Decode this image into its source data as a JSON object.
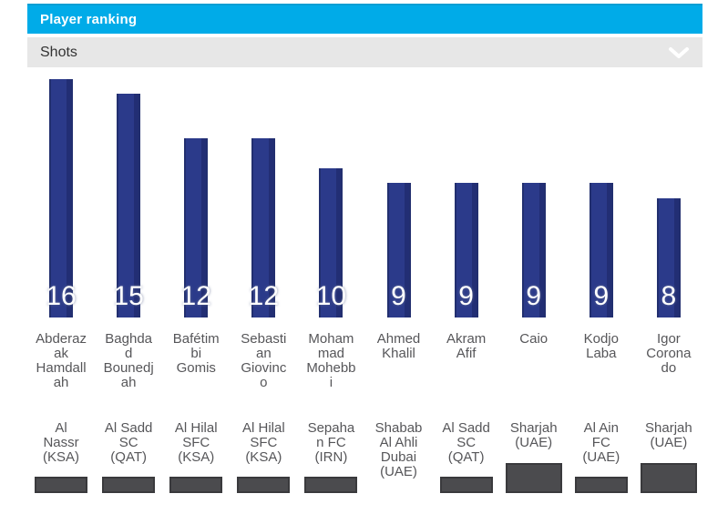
{
  "panel": {
    "title": "Player ranking"
  },
  "dropdown": {
    "selected": "Shots",
    "icon": "chevron-down-icon"
  },
  "colors": {
    "header_bg": "#00abe8",
    "header_text": "#ffffff",
    "dropdown_bg": "#e7e7e7",
    "bar": "#2b3a8a",
    "bar_edge": "#222f6f",
    "value_text": "#ffffff",
    "label_text": "#565659",
    "logo_placeholder": "#4b4b4e"
  },
  "chart_data": {
    "type": "bar",
    "title": "Player ranking",
    "metric": "Shots",
    "xlabel": "",
    "ylabel": "Shots",
    "ylim": [
      0,
      16
    ],
    "grid": false,
    "legend": "none",
    "bar_color": "#2b3a8a",
    "categories": [
      "Abderazak Hamdallah",
      "Baghdad Bounedjah",
      "Bafétimbi Gomis",
      "Sebastian Giovinco",
      "Mohammad Mohebbi",
      "Ahmed Khalil",
      "Akram Afif",
      "Caio",
      "Kodjo Laba",
      "Igor Coronado"
    ],
    "values": [
      16,
      15,
      12,
      12,
      10,
      9,
      9,
      9,
      9,
      8
    ],
    "teams": [
      "Al Nassr (KSA)",
      "Al Sadd SC (QAT)",
      "Al Hilal SFC (KSA)",
      "Al Hilal SFC (KSA)",
      "Sepahan FC (IRN)",
      "Shabab Al Ahli Dubai (UAE)",
      "Al Sadd SC (QAT)",
      "Sharjah (UAE)",
      "Al Ain FC (UAE)",
      "Sharjah (UAE)"
    ],
    "players": [
      {
        "value": 16,
        "name_lines": [
          "Abderaz",
          "ak",
          "Hamdall",
          "ah"
        ],
        "team_lines": [
          "Al",
          "Nassr",
          "(KSA)"
        ],
        "logo": "short"
      },
      {
        "value": 15,
        "name_lines": [
          "Baghda",
          "d",
          "Bounedj",
          "ah"
        ],
        "team_lines": [
          "Al Sadd",
          "SC",
          "(QAT)"
        ],
        "logo": "short"
      },
      {
        "value": 12,
        "name_lines": [
          "Bafétim",
          "bi",
          "Gomis"
        ],
        "team_lines": [
          "Al Hilal",
          "SFC",
          "(KSA)"
        ],
        "logo": "short"
      },
      {
        "value": 12,
        "name_lines": [
          "Sebasti",
          "an",
          "Giovinc",
          "o"
        ],
        "team_lines": [
          "Al Hilal",
          "SFC",
          "(KSA)"
        ],
        "logo": "short"
      },
      {
        "value": 10,
        "name_lines": [
          "Moham",
          "mad",
          "Mohebb",
          "i"
        ],
        "team_lines": [
          "Sepaha",
          "n FC",
          "(IRN)"
        ],
        "logo": "short"
      },
      {
        "value": 9,
        "name_lines": [
          "Ahmed",
          "Khalil"
        ],
        "team_lines": [
          "Shabab",
          "Al Ahli",
          "Dubai",
          "(UAE)"
        ],
        "logo": "none"
      },
      {
        "value": 9,
        "name_lines": [
          "Akram",
          "Afif"
        ],
        "team_lines": [
          "Al Sadd",
          "SC",
          "(QAT)"
        ],
        "logo": "short"
      },
      {
        "value": 9,
        "name_lines": [
          "Caio"
        ],
        "team_lines": [
          "Sharjah",
          "(UAE)"
        ],
        "logo": "tall"
      },
      {
        "value": 9,
        "name_lines": [
          "Kodjo",
          "Laba"
        ],
        "team_lines": [
          "Al Ain",
          "FC",
          "(UAE)"
        ],
        "logo": "short"
      },
      {
        "value": 8,
        "name_lines": [
          "Igor",
          "Corona",
          "do"
        ],
        "team_lines": [
          "Sharjah",
          "(UAE)"
        ],
        "logo": "tall"
      }
    ]
  }
}
